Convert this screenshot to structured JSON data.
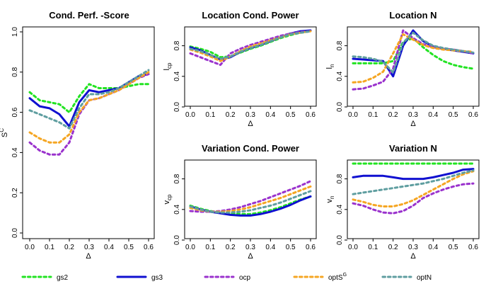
{
  "colors": {
    "gs2": "#22e322",
    "gs3": "#1010d0",
    "ocp": "#9a32cd",
    "optSG": "#f5a623",
    "optN": "#5f9ea0"
  },
  "legend": {
    "entries": [
      {
        "key": "gs2",
        "label": "gs2",
        "style": "dashed"
      },
      {
        "key": "gs3",
        "label": "gs3",
        "style": "solid"
      },
      {
        "key": "ocp",
        "label": "ocp",
        "style": "dashed"
      },
      {
        "key": "optSG",
        "label": "optS",
        "superscript": "G",
        "style": "dashed"
      },
      {
        "key": "optN",
        "label": "optN",
        "style": "dashed"
      }
    ]
  },
  "chart_data": [
    {
      "id": "cond-perf",
      "type": "line",
      "title": "Cond. Perf. -Score",
      "xlabel": "Δ",
      "ylabel": "S",
      "ylabel_sup": "C",
      "xlim": [
        0,
        0.6
      ],
      "ylim": [
        0,
        1.0
      ],
      "xticks": [
        "0.0",
        "0.1",
        "0.2",
        "0.3",
        "0.4",
        "0.5",
        "0.6"
      ],
      "yticks": [
        "0.0",
        "0.2",
        "0.4",
        "0.6",
        "0.8",
        "1.0"
      ],
      "x": [
        0,
        0.05,
        0.1,
        0.15,
        0.2,
        0.25,
        0.3,
        0.35,
        0.4,
        0.45,
        0.5,
        0.55,
        0.6
      ],
      "series": [
        {
          "key": "gs2",
          "values": [
            0.7,
            0.66,
            0.65,
            0.64,
            0.6,
            0.68,
            0.74,
            0.72,
            0.72,
            0.72,
            0.73,
            0.74,
            0.74
          ]
        },
        {
          "key": "gs3",
          "values": [
            0.67,
            0.63,
            0.62,
            0.59,
            0.53,
            0.65,
            0.71,
            0.7,
            0.71,
            0.72,
            0.75,
            0.78,
            0.79
          ]
        },
        {
          "key": "ocp",
          "values": [
            0.45,
            0.41,
            0.39,
            0.39,
            0.45,
            0.59,
            0.66,
            0.67,
            0.69,
            0.71,
            0.74,
            0.77,
            0.79
          ]
        },
        {
          "key": "optSG",
          "values": [
            0.5,
            0.47,
            0.45,
            0.45,
            0.49,
            0.6,
            0.66,
            0.67,
            0.69,
            0.71,
            0.74,
            0.77,
            0.8
          ]
        },
        {
          "key": "optN",
          "values": [
            0.61,
            0.59,
            0.57,
            0.55,
            0.52,
            0.62,
            0.69,
            0.69,
            0.7,
            0.72,
            0.75,
            0.78,
            0.81
          ]
        }
      ]
    },
    {
      "id": "loc-cond-power",
      "type": "line",
      "title": "Location Cond. Power",
      "xlabel": "Δ",
      "ylabel": "l",
      "ylabel_sub": "cp",
      "xlim": [
        0,
        0.6
      ],
      "ylim": [
        0,
        1.0
      ],
      "xticks": [
        "0.0",
        "0.1",
        "0.2",
        "0.3",
        "0.4",
        "0.5",
        "0.6"
      ],
      "yticks": [
        "0.0",
        "0.4",
        "0.8"
      ],
      "x": [
        0,
        0.05,
        0.1,
        0.15,
        0.2,
        0.25,
        0.3,
        0.35,
        0.4,
        0.45,
        0.5,
        0.55,
        0.6
      ],
      "series": [
        {
          "key": "gs2",
          "values": [
            0.79,
            0.76,
            0.72,
            0.65,
            0.66,
            0.71,
            0.76,
            0.8,
            0.85,
            0.9,
            0.94,
            0.97,
            0.99
          ]
        },
        {
          "key": "gs3",
          "values": [
            0.78,
            0.74,
            0.68,
            0.62,
            0.65,
            0.72,
            0.77,
            0.81,
            0.86,
            0.91,
            0.96,
            0.99,
            1.0
          ]
        },
        {
          "key": "ocp",
          "values": [
            0.7,
            0.65,
            0.6,
            0.55,
            0.7,
            0.76,
            0.81,
            0.85,
            0.89,
            0.93,
            0.96,
            0.98,
            0.99
          ]
        },
        {
          "key": "optSG",
          "values": [
            0.75,
            0.71,
            0.66,
            0.6,
            0.66,
            0.73,
            0.79,
            0.83,
            0.87,
            0.91,
            0.95,
            0.97,
            0.99
          ]
        },
        {
          "key": "optN",
          "values": [
            0.76,
            0.73,
            0.68,
            0.63,
            0.66,
            0.72,
            0.77,
            0.81,
            0.86,
            0.91,
            0.95,
            0.97,
            0.99
          ]
        }
      ]
    },
    {
      "id": "loc-n",
      "type": "line",
      "title": "Location N",
      "xlabel": "Δ",
      "ylabel": "l",
      "ylabel_sub": "n",
      "xlim": [
        0,
        0.6
      ],
      "ylim": [
        0,
        1.0
      ],
      "xticks": [
        "0.0",
        "0.1",
        "0.2",
        "0.3",
        "0.4",
        "0.5",
        "0.6"
      ],
      "yticks": [
        "0.0",
        "0.4",
        "0.8"
      ],
      "x": [
        0,
        0.05,
        0.1,
        0.15,
        0.2,
        0.25,
        0.3,
        0.35,
        0.4,
        0.45,
        0.5,
        0.55,
        0.6
      ],
      "series": [
        {
          "key": "gs2",
          "values": [
            0.57,
            0.57,
            0.57,
            0.57,
            0.6,
            0.85,
            0.9,
            0.78,
            0.68,
            0.6,
            0.55,
            0.52,
            0.5
          ]
        },
        {
          "key": "gs3",
          "values": [
            0.63,
            0.62,
            0.61,
            0.6,
            0.4,
            0.8,
            1.0,
            0.86,
            0.79,
            0.76,
            0.74,
            0.72,
            0.7
          ]
        },
        {
          "key": "ocp",
          "values": [
            0.23,
            0.24,
            0.28,
            0.33,
            0.5,
            1.0,
            0.9,
            0.82,
            0.78,
            0.76,
            0.75,
            0.73,
            0.7
          ]
        },
        {
          "key": "optSG",
          "values": [
            0.32,
            0.33,
            0.38,
            0.46,
            0.7,
            0.95,
            0.88,
            0.81,
            0.77,
            0.75,
            0.74,
            0.73,
            0.72
          ]
        },
        {
          "key": "optN",
          "values": [
            0.66,
            0.65,
            0.63,
            0.59,
            0.45,
            0.84,
            0.97,
            0.87,
            0.8,
            0.77,
            0.75,
            0.73,
            0.71
          ]
        }
      ]
    },
    {
      "id": "var-cond-power",
      "type": "line",
      "title": "Variation Cond. Power",
      "xlabel": "Δ",
      "ylabel": "v",
      "ylabel_sub": "cp",
      "xlim": [
        0,
        0.6
      ],
      "ylim": [
        0,
        1.0
      ],
      "xticks": [
        "0.0",
        "0.1",
        "0.2",
        "0.3",
        "0.4",
        "0.5",
        "0.6"
      ],
      "yticks": [
        "0.0",
        "0.4",
        "0.8"
      ],
      "x": [
        0,
        0.05,
        0.1,
        0.15,
        0.2,
        0.25,
        0.3,
        0.35,
        0.4,
        0.45,
        0.5,
        0.55,
        0.6
      ],
      "series": [
        {
          "key": "gs2",
          "values": [
            0.45,
            0.41,
            0.38,
            0.36,
            0.35,
            0.34,
            0.34,
            0.36,
            0.39,
            0.43,
            0.48,
            0.53,
            0.57
          ]
        },
        {
          "key": "gs3",
          "values": [
            0.44,
            0.4,
            0.37,
            0.35,
            0.33,
            0.32,
            0.32,
            0.34,
            0.37,
            0.41,
            0.46,
            0.52,
            0.57
          ]
        },
        {
          "key": "ocp",
          "values": [
            0.38,
            0.37,
            0.37,
            0.38,
            0.4,
            0.43,
            0.47,
            0.51,
            0.56,
            0.61,
            0.66,
            0.71,
            0.77
          ]
        },
        {
          "key": "optSG",
          "values": [
            0.42,
            0.39,
            0.37,
            0.37,
            0.38,
            0.4,
            0.43,
            0.47,
            0.51,
            0.55,
            0.6,
            0.65,
            0.7
          ]
        },
        {
          "key": "optN",
          "values": [
            0.44,
            0.4,
            0.37,
            0.36,
            0.36,
            0.37,
            0.39,
            0.42,
            0.45,
            0.49,
            0.54,
            0.59,
            0.64
          ]
        }
      ]
    },
    {
      "id": "var-n",
      "type": "line",
      "title": "Variation N",
      "xlabel": "Δ",
      "ylabel": "v",
      "ylabel_sub": "n",
      "xlim": [
        0,
        0.6
      ],
      "ylim": [
        0,
        1.0
      ],
      "xticks": [
        "0.0",
        "0.1",
        "0.2",
        "0.3",
        "0.4",
        "0.5",
        "0.6"
      ],
      "yticks": [
        "0.0",
        "0.4",
        "0.8"
      ],
      "x": [
        0,
        0.05,
        0.1,
        0.15,
        0.2,
        0.25,
        0.3,
        0.35,
        0.4,
        0.45,
        0.5,
        0.55,
        0.6
      ],
      "series": [
        {
          "key": "gs2",
          "values": [
            1.0,
            1.0,
            1.0,
            1.0,
            1.0,
            1.0,
            1.0,
            1.0,
            1.0,
            1.0,
            1.0,
            1.0,
            1.0
          ]
        },
        {
          "key": "gs3",
          "values": [
            0.82,
            0.84,
            0.84,
            0.84,
            0.82,
            0.8,
            0.8,
            0.8,
            0.82,
            0.85,
            0.88,
            0.92,
            0.93
          ]
        },
        {
          "key": "ocp",
          "values": [
            0.48,
            0.45,
            0.4,
            0.36,
            0.35,
            0.38,
            0.45,
            0.55,
            0.61,
            0.66,
            0.7,
            0.73,
            0.74
          ]
        },
        {
          "key": "optSG",
          "values": [
            0.53,
            0.5,
            0.46,
            0.44,
            0.44,
            0.47,
            0.52,
            0.59,
            0.66,
            0.73,
            0.8,
            0.86,
            0.9
          ]
        },
        {
          "key": "optN",
          "values": [
            0.6,
            0.62,
            0.64,
            0.66,
            0.68,
            0.7,
            0.72,
            0.74,
            0.77,
            0.8,
            0.84,
            0.88,
            0.91
          ]
        }
      ]
    }
  ]
}
